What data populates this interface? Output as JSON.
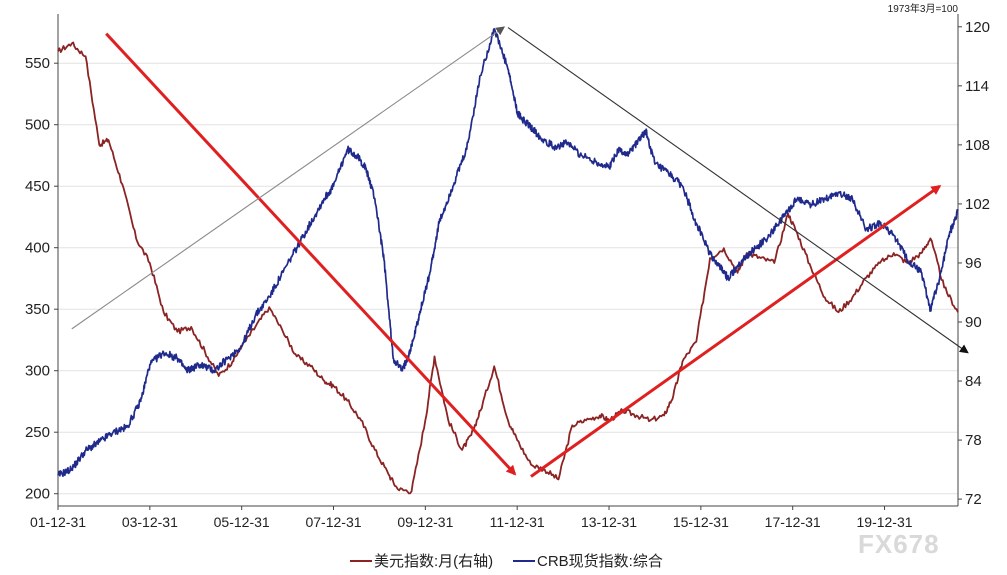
{
  "chart_data": {
    "type": "line",
    "note": "1973年3月=100",
    "x_ticks": [
      "01-12-31",
      "03-12-31",
      "05-12-31",
      "07-12-31",
      "09-12-31",
      "11-12-31",
      "13-12-31",
      "15-12-31",
      "17-12-31",
      "19-12-31"
    ],
    "x_range": [
      2001.0,
      2020.6
    ],
    "left_axis": {
      "ylim": [
        190,
        590
      ],
      "ticks": [
        200,
        250,
        300,
        350,
        400,
        450,
        500,
        550
      ]
    },
    "right_axis": {
      "ylim": [
        71.3,
        121.3
      ],
      "ticks": [
        72,
        78,
        84,
        90,
        96,
        102,
        108,
        114,
        120
      ]
    },
    "legend": [
      {
        "label": "美元指数:月(右轴)",
        "color": "#8b2323"
      },
      {
        "label": "CRB现货指数:综合",
        "color": "#1f2a8c"
      }
    ],
    "series": [
      {
        "name": "美元指数:月(右轴)",
        "axis": "right",
        "color": "#8b2323",
        "x": [
          2001.0,
          2001.3,
          2001.6,
          2001.9,
          2002.1,
          2002.4,
          2002.7,
          2003.0,
          2003.3,
          2003.6,
          2003.9,
          2004.2,
          2004.5,
          2004.8,
          2005.0,
          2005.3,
          2005.6,
          2005.9,
          2006.2,
          2006.5,
          2006.8,
          2007.0,
          2007.3,
          2007.6,
          2007.9,
          2008.2,
          2008.4,
          2008.7,
          2009.0,
          2009.2,
          2009.5,
          2009.8,
          2010.0,
          2010.2,
          2010.5,
          2010.8,
          2011.0,
          2011.3,
          2011.6,
          2011.9,
          2012.2,
          2012.5,
          2012.8,
          2013.0,
          2013.3,
          2013.6,
          2013.9,
          2014.2,
          2014.4,
          2014.6,
          2014.9,
          2015.2,
          2015.5,
          2015.8,
          2016.0,
          2016.3,
          2016.6,
          2016.9,
          2017.1,
          2017.4,
          2017.7,
          2018.0,
          2018.3,
          2018.6,
          2018.9,
          2019.2,
          2019.5,
          2019.8,
          2020.0,
          2020.3,
          2020.6
        ],
        "values": [
          117.5,
          118.3,
          117.0,
          108.0,
          108.5,
          104.0,
          98.5,
          96.0,
          91.0,
          89.0,
          89.5,
          87.0,
          84.5,
          86.0,
          87.5,
          89.5,
          91.5,
          89.0,
          86.5,
          85.5,
          84.0,
          83.5,
          82.0,
          80.0,
          77.0,
          74.5,
          73.0,
          72.8,
          80.0,
          86.5,
          80.0,
          77.0,
          78.5,
          81.0,
          85.5,
          80.0,
          78.0,
          75.5,
          75.0,
          74.0,
          79.5,
          80.0,
          80.5,
          80.0,
          81.0,
          80.5,
          80.0,
          80.5,
          82.5,
          86.0,
          88.0,
          96.5,
          97.5,
          95.0,
          97.0,
          96.5,
          96.0,
          101.0,
          99.0,
          95.5,
          92.5,
          91.0,
          92.5,
          94.5,
          96.0,
          97.0,
          96.0,
          97.0,
          98.5,
          93.5,
          91.0
        ]
      },
      {
        "name": "CRB现货指数:综合",
        "axis": "left",
        "color": "#1f2a8c",
        "x": [
          2001.0,
          2001.3,
          2001.6,
          2001.9,
          2002.2,
          2002.5,
          2002.8,
          2003.0,
          2003.3,
          2003.6,
          2003.8,
          2004.1,
          2004.4,
          2004.7,
          2005.0,
          2005.3,
          2005.6,
          2005.9,
          2006.2,
          2006.5,
          2006.8,
          2007.0,
          2007.3,
          2007.5,
          2007.7,
          2007.9,
          2008.1,
          2008.3,
          2008.5,
          2008.7,
          2008.9,
          2009.1,
          2009.3,
          2009.6,
          2009.9,
          2010.2,
          2010.5,
          2010.8,
          2011.0,
          2011.1,
          2011.3,
          2011.5,
          2011.8,
          2012.1,
          2012.4,
          2012.7,
          2013.0,
          2013.2,
          2013.4,
          2013.6,
          2013.8,
          2014.0,
          2014.3,
          2014.6,
          2014.9,
          2015.2,
          2015.4,
          2015.6,
          2015.9,
          2016.2,
          2016.5,
          2016.8,
          2017.1,
          2017.4,
          2017.7,
          2018.0,
          2018.3,
          2018.6,
          2018.9,
          2019.2,
          2019.5,
          2019.8,
          2020.0,
          2020.2,
          2020.4,
          2020.6
        ],
        "values": [
          215,
          220,
          235,
          242,
          250,
          254,
          275,
          305,
          315,
          310,
          300,
          305,
          300,
          310,
          320,
          345,
          360,
          380,
          400,
          420,
          440,
          450,
          480,
          475,
          465,
          440,
          390,
          310,
          300,
          320,
          350,
          380,
          420,
          450,
          480,
          540,
          578,
          545,
          510,
          505,
          498,
          490,
          482,
          485,
          475,
          470,
          465,
          480,
          475,
          485,
          495,
          468,
          460,
          450,
          420,
          395,
          385,
          375,
          390,
          400,
          410,
          425,
          440,
          435,
          440,
          445,
          440,
          415,
          420,
          410,
          390,
          380,
          350,
          375,
          410,
          430
        ]
      }
    ],
    "annotations": [
      {
        "kind": "red-arrow",
        "color": "#e02020"
      },
      {
        "kind": "red-arrow",
        "color": "#e02020"
      },
      {
        "kind": "gray-arrow",
        "color": "#888888"
      },
      {
        "kind": "gray-arrow",
        "color": "#222222"
      }
    ],
    "watermark": "FX678"
  }
}
